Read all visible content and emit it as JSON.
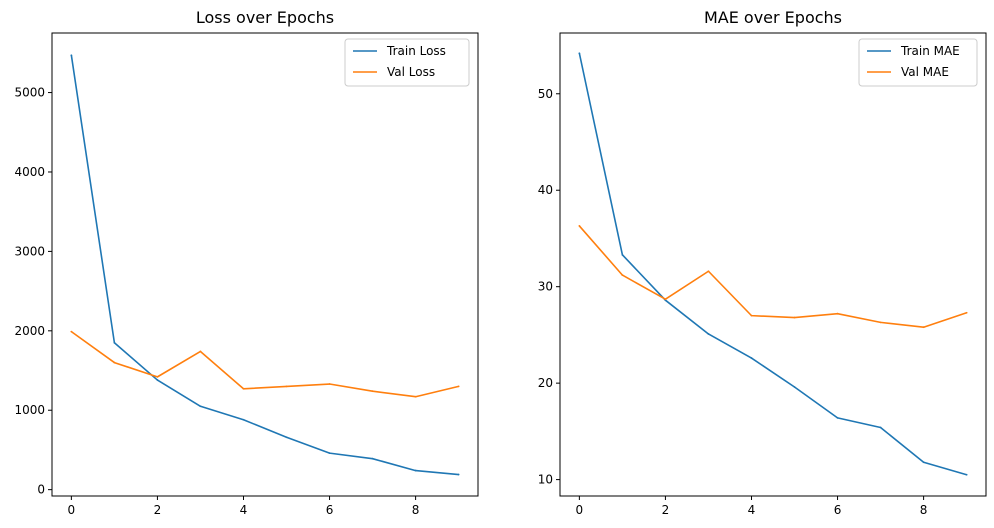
{
  "colors": {
    "train": "#1f77b4",
    "val": "#ff7f0e"
  },
  "chart_data": [
    {
      "type": "line",
      "title": "Loss over Epochs",
      "xlabel": "",
      "ylabel": "",
      "x": [
        0,
        1,
        2,
        3,
        4,
        5,
        6,
        7,
        8,
        9
      ],
      "xticks": [
        0,
        2,
        4,
        6,
        8
      ],
      "xlim": [
        -0.45,
        9.45
      ],
      "yticks": [
        0,
        1000,
        2000,
        3000,
        4000,
        5000
      ],
      "ylim": [
        -80,
        5750
      ],
      "legend_position": "upper right",
      "grid": false,
      "series": [
        {
          "name": "Train Loss",
          "color_key": "train",
          "values": [
            5470,
            1850,
            1380,
            1050,
            880,
            660,
            460,
            390,
            240,
            190
          ]
        },
        {
          "name": "Val Loss",
          "color_key": "val",
          "values": [
            1990,
            1600,
            1420,
            1740,
            1270,
            1300,
            1330,
            1240,
            1170,
            1300
          ]
        }
      ]
    },
    {
      "type": "line",
      "title": "MAE over Epochs",
      "xlabel": "",
      "ylabel": "",
      "x": [
        0,
        1,
        2,
        3,
        4,
        5,
        6,
        7,
        8,
        9
      ],
      "xticks": [
        0,
        2,
        4,
        6,
        8
      ],
      "xlim": [
        -0.45,
        9.45
      ],
      "yticks": [
        10,
        20,
        30,
        40,
        50
      ],
      "ylim": [
        8.3,
        56.3
      ],
      "legend_position": "upper right",
      "grid": false,
      "series": [
        {
          "name": "Train MAE",
          "color_key": "train",
          "values": [
            54.2,
            33.3,
            28.6,
            25.1,
            22.6,
            19.6,
            16.4,
            15.4,
            11.8,
            10.5
          ]
        },
        {
          "name": "Val MAE",
          "color_key": "val",
          "values": [
            36.3,
            31.2,
            28.7,
            31.6,
            27.0,
            26.8,
            27.2,
            26.3,
            25.8,
            27.3
          ]
        }
      ]
    }
  ]
}
